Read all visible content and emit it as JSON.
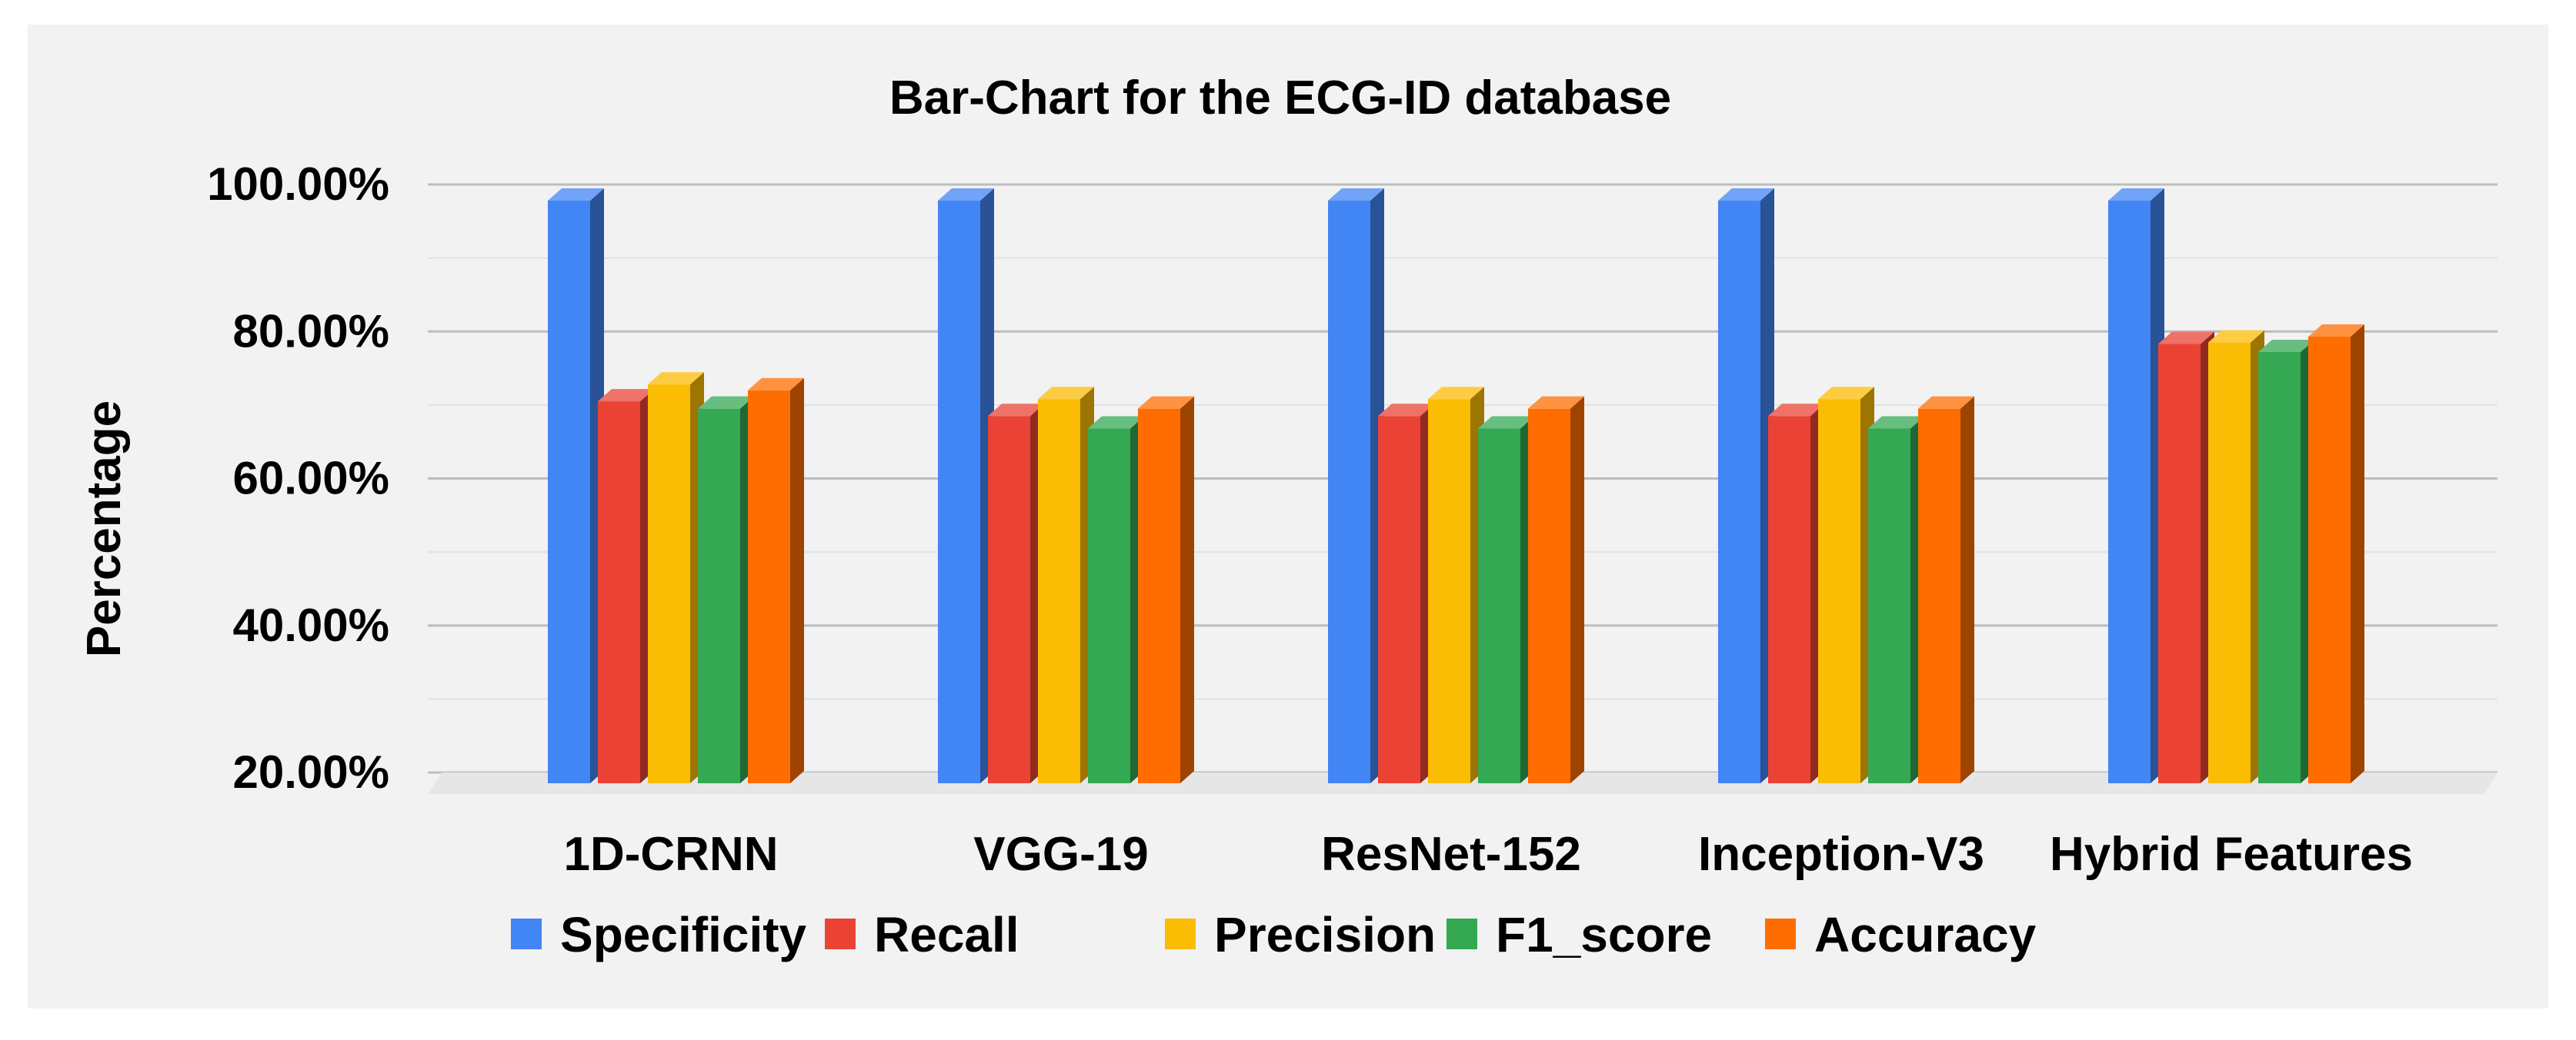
{
  "chart_data": {
    "type": "bar",
    "title": "Bar-Chart for the ECG-ID database",
    "xlabel": "",
    "ylabel": "Percentage",
    "ylim": [
      20,
      100
    ],
    "yticks": [
      "20.00%",
      "40.00%",
      "60.00%",
      "80.00%",
      "100.00%"
    ],
    "grid": true,
    "legend_position": "bottom",
    "categories": [
      "1D-CRNN",
      "VGG-19",
      "ResNet-152",
      "Inception-V3",
      "Hybrid Features"
    ],
    "series": [
      {
        "name": "Specificity",
        "color": "#4285f4",
        "values": [
          97.8,
          97.8,
          97.8,
          97.8,
          97.8
        ]
      },
      {
        "name": "Recall",
        "color": "#ea4335",
        "values": [
          70.5,
          68.5,
          68.5,
          68.5,
          78.3
        ]
      },
      {
        "name": "Precision",
        "color": "#fbbc04",
        "values": [
          72.8,
          70.8,
          70.8,
          70.8,
          78.5
        ]
      },
      {
        "name": "F1_score",
        "color": "#34a853",
        "values": [
          69.5,
          66.8,
          66.8,
          66.8,
          77.2
        ]
      },
      {
        "name": "Accuracy",
        "color": "#ff6d01",
        "values": [
          72.0,
          69.5,
          69.5,
          69.5,
          79.3
        ]
      }
    ]
  }
}
